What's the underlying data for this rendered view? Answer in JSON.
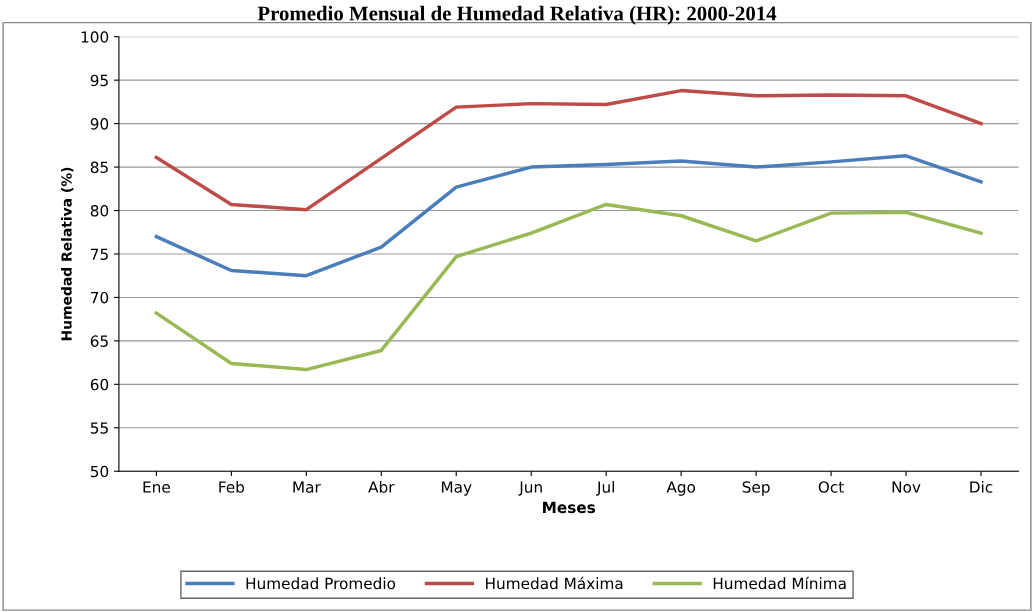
{
  "chart_data": {
    "type": "line",
    "title": "Promedio Mensual de Humedad Relativa (HR): 2000-2014",
    "xlabel": "Meses",
    "ylabel": "Humedad Relativa (%)",
    "categories": [
      "Ene",
      "Feb",
      "Mar",
      "Abr",
      "May",
      "Jun",
      "Jul",
      "Ago",
      "Sep",
      "Oct",
      "Nov",
      "Dic"
    ],
    "series": [
      {
        "name": "Humedad Promedio",
        "color": "#4a7ebb",
        "values": [
          77,
          73.1,
          72.5,
          75.8,
          82.7,
          85,
          85.3,
          85.7,
          85,
          85.6,
          86.3,
          83.3
        ]
      },
      {
        "name": "Humedad Máxima",
        "color": "#be4b48",
        "values": [
          86.1,
          80.7,
          80.1,
          86,
          91.9,
          92.3,
          92.2,
          93.8,
          93.2,
          93.3,
          93.2,
          90
        ]
      },
      {
        "name": "Humedad Mínima",
        "color": "#98b954",
        "values": [
          68.2,
          62.4,
          61.7,
          63.9,
          74.7,
          77.4,
          80.7,
          79.4,
          76.5,
          79.7,
          79.8,
          77.4
        ]
      }
    ],
    "ylim": [
      50,
      100
    ],
    "yticks": [
      50,
      55,
      60,
      65,
      70,
      75,
      80,
      85,
      90,
      95,
      100
    ],
    "grid": "y",
    "legend": "bottom",
    "marker": "none",
    "line_style": "solid"
  }
}
